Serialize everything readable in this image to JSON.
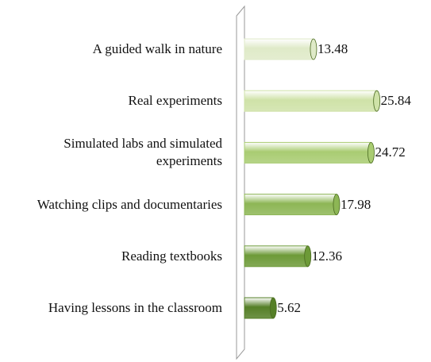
{
  "chart_data": {
    "type": "bar",
    "orientation": "horizontal",
    "categories": [
      "A guided walk in nature",
      "Real experiments",
      "Simulated labs and simulated experiments",
      "Watching clips and documentaries",
      "Reading textbooks",
      "Having lessons in the classroom"
    ],
    "values": [
      13.48,
      25.84,
      24.72,
      17.98,
      12.36,
      5.62
    ],
    "colors": [
      "#dfeac8",
      "#cfe2a8",
      "#a9cc72",
      "#8db655",
      "#6d9a38",
      "#557f27"
    ]
  }
}
